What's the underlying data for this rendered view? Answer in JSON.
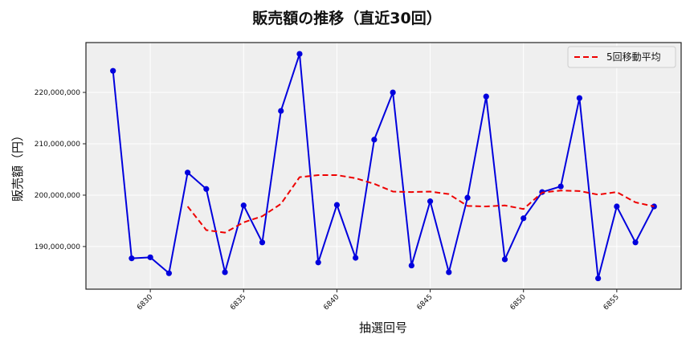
{
  "chart_data": {
    "type": "line",
    "title": "販売額の推移（直近30回）",
    "xlabel": "抽選回号",
    "ylabel": "販売額（円）",
    "x": [
      6828,
      6829,
      6830,
      6831,
      6832,
      6833,
      6834,
      6835,
      6836,
      6837,
      6838,
      6839,
      6840,
      6841,
      6842,
      6843,
      6844,
      6845,
      6846,
      6847,
      6848,
      6849,
      6850,
      6851,
      6852,
      6853,
      6854,
      6855,
      6856,
      6857
    ],
    "series": [
      {
        "name": "販売額",
        "color": "#0000dd",
        "style": "solid",
        "marker": "circle",
        "in_legend": false,
        "values": [
          224200000,
          187700000,
          187900000,
          184800000,
          204400000,
          201200000,
          185000000,
          198000000,
          190800000,
          216400000,
          227500000,
          186900000,
          198100000,
          187800000,
          210800000,
          220000000,
          186300000,
          198800000,
          185000000,
          199500000,
          219200000,
          187500000,
          195500000,
          200600000,
          201700000,
          218900000,
          183800000,
          197800000,
          190800000,
          197800000
        ]
      },
      {
        "name": "5回移動平均",
        "color": "#ee0000",
        "style": "dashed",
        "marker": "none",
        "in_legend": true,
        "values": [
          null,
          null,
          null,
          null,
          197800000,
          193200000,
          192700000,
          194700000,
          195900000,
          198300000,
          203500000,
          203900000,
          203900000,
          203300000,
          202200000,
          200700000,
          200600000,
          200700000,
          200200000,
          197900000,
          197800000,
          198000000,
          197300000,
          200500000,
          200900000,
          200800000,
          200100000,
          200600000,
          198600000,
          197800000
        ]
      }
    ],
    "x_ticks": [
      6830,
      6835,
      6840,
      6845,
      6850,
      6855
    ],
    "y_ticks": [
      190000000,
      200000000,
      210000000,
      220000000
    ],
    "y_tick_labels": [
      "190,000,000",
      "200,000,000",
      "210,000,000",
      "220,000,000"
    ],
    "xlim": [
      6826.55,
      6858.45
    ],
    "ylim": [
      181700000,
      229700000
    ],
    "grid": true,
    "legend_position": "upper right",
    "background": "#efefef"
  }
}
